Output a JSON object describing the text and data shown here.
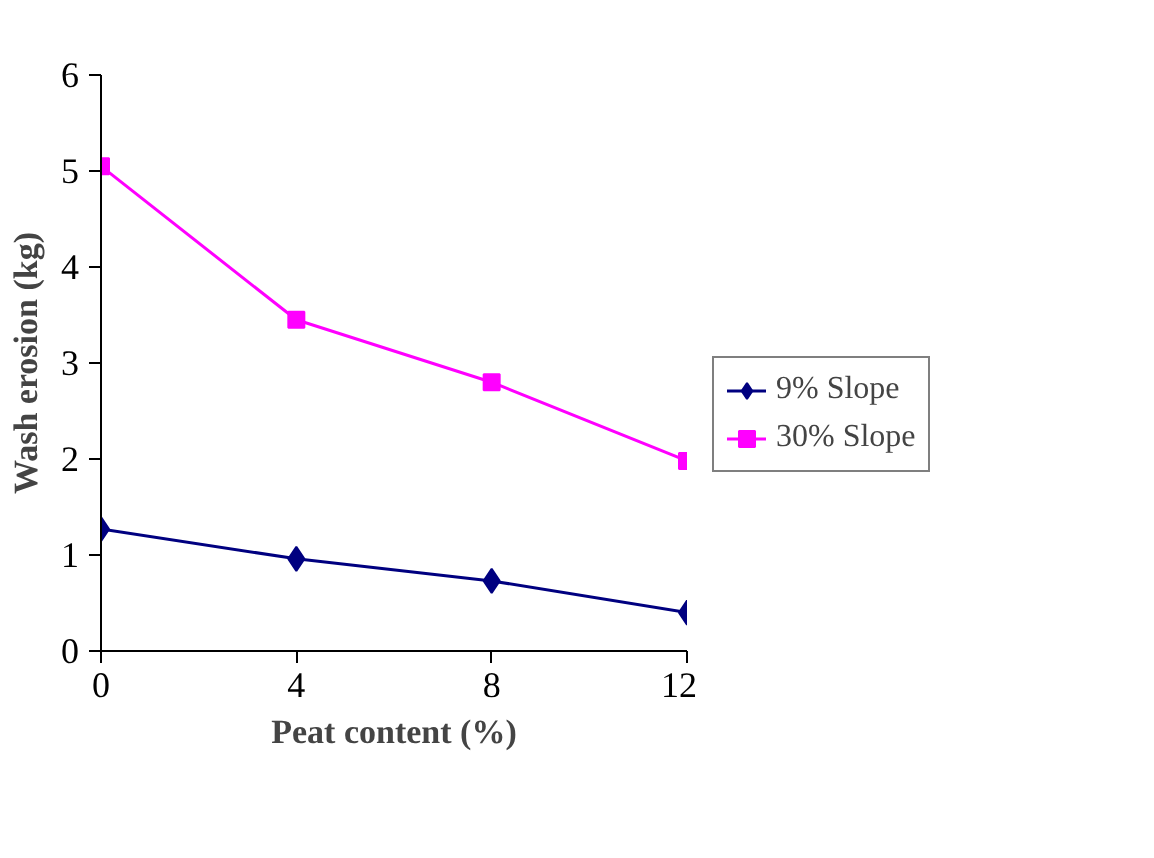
{
  "chart_data": {
    "type": "line",
    "xlabel": "Peat content (%)",
    "ylabel": "Wash erosion (kg)",
    "x": [
      0,
      4,
      8,
      12
    ],
    "xlim": [
      0,
      12
    ],
    "xticks": [
      0,
      4,
      8,
      12
    ],
    "ylim": [
      0,
      6
    ],
    "yticks": [
      0,
      1,
      2,
      3,
      4,
      5,
      6
    ],
    "grid": false,
    "legend": "right",
    "series": [
      {
        "name": "9% Slope",
        "color": "#000080",
        "marker": "diamond",
        "values": [
          1.27,
          0.96,
          0.73,
          0.4
        ]
      },
      {
        "name": "30% Slope",
        "color": "#ff00ff",
        "marker": "square",
        "values": [
          5.05,
          3.45,
          2.8,
          1.98
        ]
      }
    ]
  }
}
